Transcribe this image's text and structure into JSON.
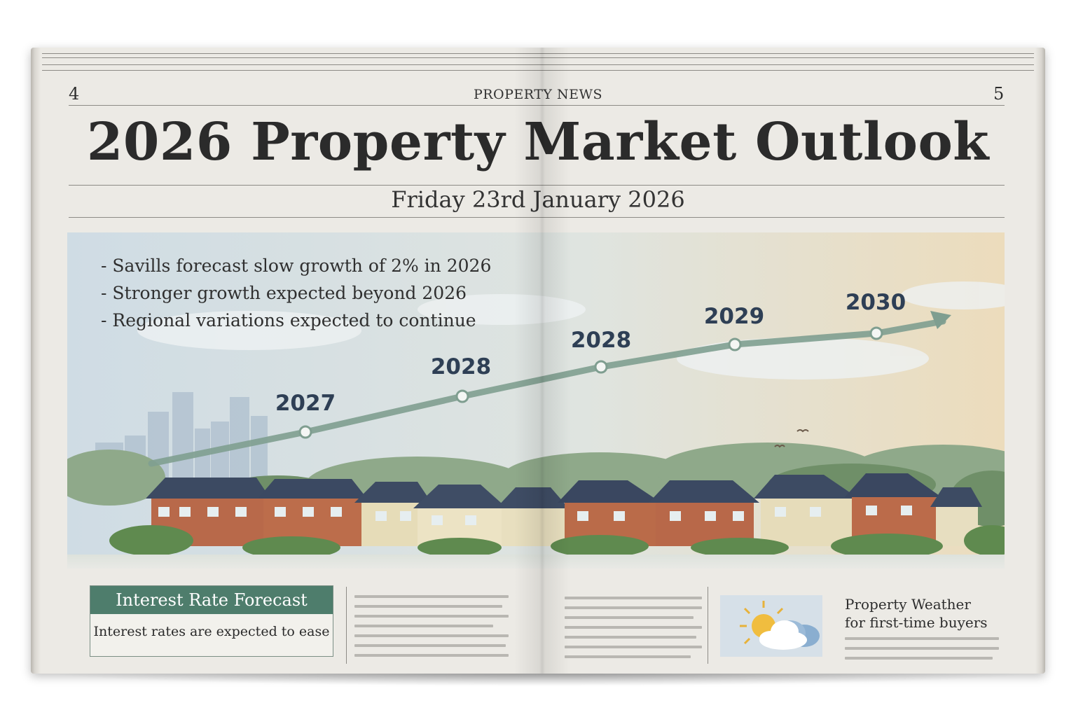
{
  "header": {
    "page_left": "4",
    "page_right": "5",
    "section": "PROPERTY NEWS",
    "headline": "2026 Property Market Outlook",
    "date": "Friday 23rd January 2026"
  },
  "bullets": [
    "Savills forecast slow growth of 2% in 2026",
    "Stronger growth expected beyond 2026",
    "Regional variations expected to continue"
  ],
  "trend": {
    "labels": [
      "2027",
      "2028",
      "2028",
      "2029",
      "2030"
    ]
  },
  "interest_box": {
    "title": "Interest Rate Forecast",
    "text": "Interest rates are expected to ease"
  },
  "weather_box": {
    "title_line1": "Property Weather",
    "title_line2": "for first-time buyers"
  },
  "colors": {
    "accent_green": "#4e7d6c",
    "trend_line": "#7f9e90",
    "label_navy": "#2e3f55"
  }
}
